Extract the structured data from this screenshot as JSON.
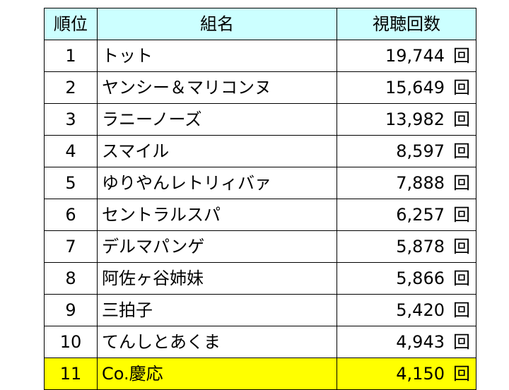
{
  "header": {
    "rank": "順位",
    "name": "組名",
    "views": "視聴回数"
  },
  "unit": "回",
  "colors": {
    "header_bg": "#ccffff",
    "highlight_bg": "#ffff00"
  },
  "rows": [
    {
      "rank": "1",
      "name": "トット",
      "views": "19,744"
    },
    {
      "rank": "2",
      "name": "ヤンシー＆マリコンヌ",
      "views": "15,649"
    },
    {
      "rank": "3",
      "name": "ラニーノーズ",
      "views": "13,982"
    },
    {
      "rank": "4",
      "name": "スマイル",
      "views": "8,597"
    },
    {
      "rank": "5",
      "name": "ゆりやんレトリィバァ",
      "views": "7,888"
    },
    {
      "rank": "6",
      "name": "セントラルスパ",
      "views": "6,257"
    },
    {
      "rank": "7",
      "name": "デルマパンゲ",
      "views": "5,878"
    },
    {
      "rank": "8",
      "name": "阿佐ヶ谷姉妹",
      "views": "5,866"
    },
    {
      "rank": "9",
      "name": "三拍子",
      "views": "5,420"
    },
    {
      "rank": "10",
      "name": "てんしとあくま",
      "views": "4,943"
    },
    {
      "rank": "11",
      "name": "Co.慶応",
      "views": "4,150",
      "highlight": true
    }
  ]
}
